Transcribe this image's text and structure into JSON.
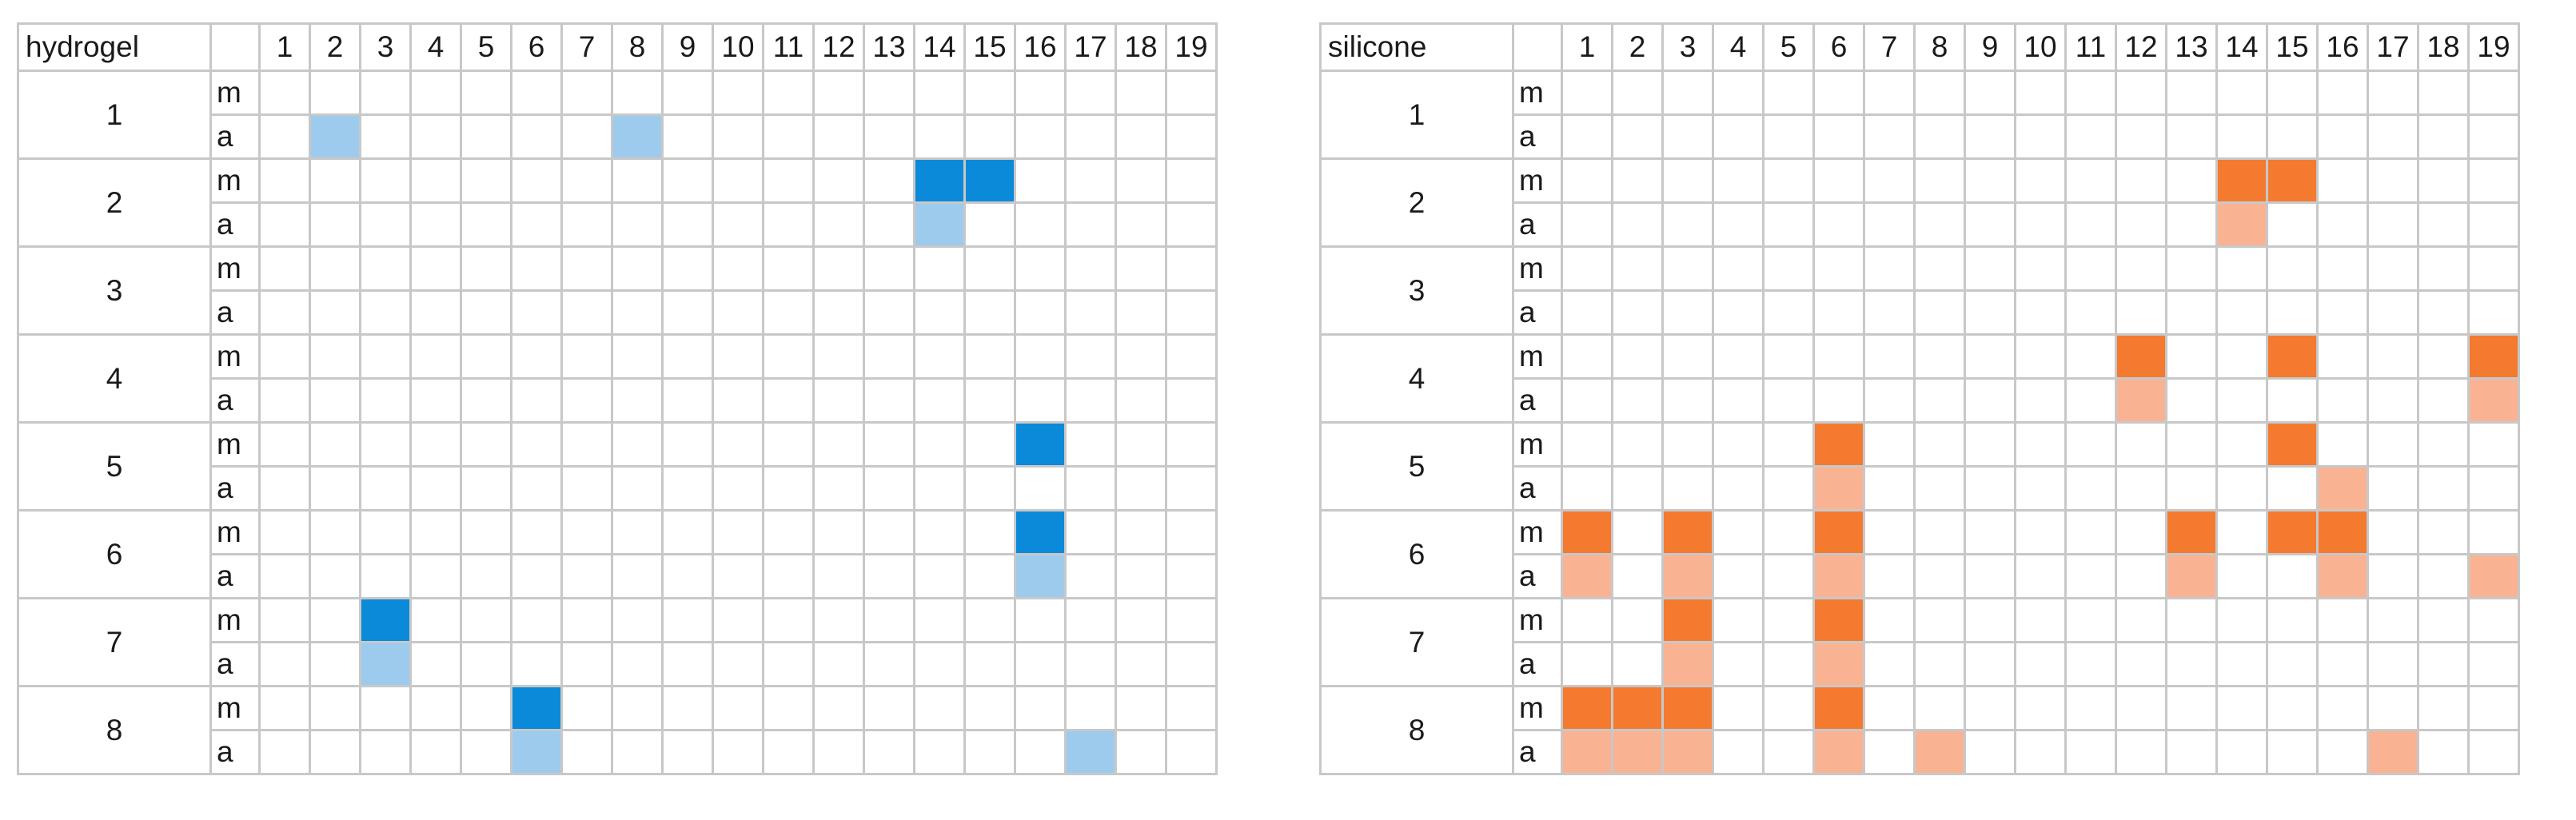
{
  "chart_data": [
    {
      "type": "heatmap",
      "title": "hydrogel",
      "columns": [
        "1",
        "2",
        "3",
        "4",
        "5",
        "6",
        "7",
        "8",
        "9",
        "10",
        "11",
        "12",
        "13",
        "14",
        "15",
        "16",
        "17",
        "18",
        "19"
      ],
      "rows": [
        "1",
        "2",
        "3",
        "4",
        "5",
        "6",
        "7",
        "8"
      ],
      "sub_rows": [
        "m",
        "a"
      ],
      "colors": {
        "m": "#0a8ad8",
        "a": "#9dcbee"
      },
      "marked": [
        {
          "row": "1",
          "sub": "a",
          "cols": [
            2,
            8
          ]
        },
        {
          "row": "2",
          "sub": "m",
          "cols": [
            14,
            15
          ]
        },
        {
          "row": "2",
          "sub": "a",
          "cols": [
            14
          ]
        },
        {
          "row": "5",
          "sub": "m",
          "cols": [
            16
          ]
        },
        {
          "row": "6",
          "sub": "m",
          "cols": [
            16
          ]
        },
        {
          "row": "6",
          "sub": "a",
          "cols": [
            16
          ]
        },
        {
          "row": "7",
          "sub": "m",
          "cols": [
            3
          ]
        },
        {
          "row": "7",
          "sub": "a",
          "cols": [
            3
          ]
        },
        {
          "row": "8",
          "sub": "m",
          "cols": [
            6
          ]
        },
        {
          "row": "8",
          "sub": "a",
          "cols": [
            6,
            17
          ]
        }
      ]
    },
    {
      "type": "heatmap",
      "title": "silicone",
      "columns": [
        "1",
        "2",
        "3",
        "4",
        "5",
        "6",
        "7",
        "8",
        "9",
        "10",
        "11",
        "12",
        "13",
        "14",
        "15",
        "16",
        "17",
        "18",
        "19"
      ],
      "rows": [
        "1",
        "2",
        "3",
        "4",
        "5",
        "6",
        "7",
        "8"
      ],
      "sub_rows": [
        "m",
        "a"
      ],
      "colors": {
        "m": "#f47a30",
        "a": "#f9b393"
      },
      "marked": [
        {
          "row": "2",
          "sub": "m",
          "cols": [
            14,
            15
          ]
        },
        {
          "row": "2",
          "sub": "a",
          "cols": [
            14
          ]
        },
        {
          "row": "4",
          "sub": "m",
          "cols": [
            12,
            15,
            19
          ]
        },
        {
          "row": "4",
          "sub": "a",
          "cols": [
            12,
            19
          ]
        },
        {
          "row": "5",
          "sub": "m",
          "cols": [
            6,
            15
          ]
        },
        {
          "row": "5",
          "sub": "a",
          "cols": [
            6,
            16
          ]
        },
        {
          "row": "6",
          "sub": "m",
          "cols": [
            1,
            3,
            6,
            13,
            15,
            16
          ]
        },
        {
          "row": "6",
          "sub": "a",
          "cols": [
            1,
            3,
            6,
            13,
            16,
            19
          ]
        },
        {
          "row": "7",
          "sub": "m",
          "cols": [
            3,
            6
          ]
        },
        {
          "row": "7",
          "sub": "a",
          "cols": [
            3,
            6
          ]
        },
        {
          "row": "8",
          "sub": "m",
          "cols": [
            1,
            2,
            3,
            6
          ]
        },
        {
          "row": "8",
          "sub": "a",
          "cols": [
            1,
            2,
            3,
            6,
            8,
            17
          ]
        }
      ]
    }
  ]
}
